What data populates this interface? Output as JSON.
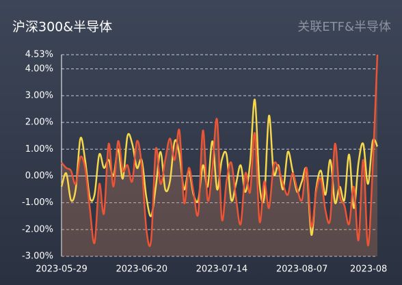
{
  "chart_data": {
    "type": "line",
    "title": "沪深300&半导体",
    "subtitle": "关联ETF&半导体",
    "categories": [
      "2023-05-29",
      null,
      null,
      null,
      null,
      null,
      null,
      null,
      null,
      null,
      null,
      null,
      null,
      null,
      null,
      null,
      null,
      "2023-06-20",
      null,
      null,
      null,
      null,
      null,
      null,
      null,
      null,
      null,
      null,
      null,
      null,
      null,
      null,
      null,
      null,
      "2023-07-14",
      null,
      null,
      null,
      null,
      null,
      null,
      null,
      null,
      null,
      null,
      null,
      null,
      null,
      null,
      null,
      null,
      "2023-08-07",
      null,
      null,
      null,
      null,
      null,
      null,
      null,
      null,
      null,
      null,
      null,
      null,
      null,
      null,
      null,
      "2023-08"
    ],
    "series": [
      {
        "color": "#f6d84a",
        "values": [
          -0.4,
          0.1,
          -0.9,
          -0.5,
          1.4,
          0.6,
          -0.8,
          -0.7,
          0.8,
          0.3,
          0.6,
          0.0,
          1.0,
          -0.1,
          1.5,
          1.2,
          0.3,
          0.6,
          -0.8,
          -1.5,
          -0.4,
          0.9,
          -0.5,
          -0.2,
          1.3,
          0.8,
          -0.5,
          0.2,
          -0.7,
          -0.9,
          0.4,
          -0.4,
          1.3,
          -0.5,
          0.6,
          0.8,
          -0.9,
          -0.3,
          0.4,
          -0.6,
          0.5,
          2.85,
          -0.3,
          -0.8,
          2.25,
          0.1,
          0.4,
          -0.5,
          0.9,
          0.2,
          -0.6,
          -0.2,
          0.2,
          -2.2,
          -0.5,
          0.2,
          -0.7,
          0.6,
          -1.0,
          -0.4,
          -0.9,
          0.8,
          -1.2,
          0.5,
          1.2,
          -0.3,
          1.3,
          1.1
        ]
      },
      {
        "color": "#ec5436",
        "values": [
          0.5,
          0.3,
          0.2,
          -0.3,
          0.7,
          0.3,
          -1.2,
          -2.5,
          -0.3,
          -1.4,
          1.2,
          -0.4,
          1.3,
          0.2,
          0.4,
          -0.2,
          1.3,
          0.4,
          -2.0,
          -2.4,
          1.0,
          -0.3,
          0.6,
          1.4,
          0.6,
          1.7,
          -1.0,
          0.3,
          -0.6,
          -1.4,
          1.7,
          -0.9,
          0.3,
          2.1,
          -1.6,
          -0.2,
          0.5,
          -0.8,
          -1.8,
          0.1,
          -0.6,
          1.6,
          -1.7,
          -0.2,
          -1.2,
          0.4,
          0.3,
          -0.3,
          -0.7,
          0.1,
          -0.5,
          -0.9,
          0.3,
          -1.9,
          -0.6,
          -0.1,
          -1.3,
          -1.6,
          1.2,
          -0.7,
          -1.1,
          -1.8,
          -0.4,
          -2.4,
          0.6,
          -2.6,
          0.3,
          4.53
        ]
      }
    ],
    "ylim": [
      -3,
      4.53
    ],
    "yticks": [
      {
        "value": -3,
        "label": "-3.00%"
      },
      {
        "value": -2,
        "label": "-2.00%"
      },
      {
        "value": -1,
        "label": "-1.00%"
      },
      {
        "value": 0,
        "label": "0.00%"
      },
      {
        "value": 1,
        "label": "1.00%"
      },
      {
        "value": 2,
        "label": "2.00%"
      },
      {
        "value": 3,
        "label": "3.00%"
      },
      {
        "value": 4,
        "label": "4.00%"
      },
      {
        "value": 4.53,
        "label": "4.53%"
      }
    ],
    "grid": true
  }
}
